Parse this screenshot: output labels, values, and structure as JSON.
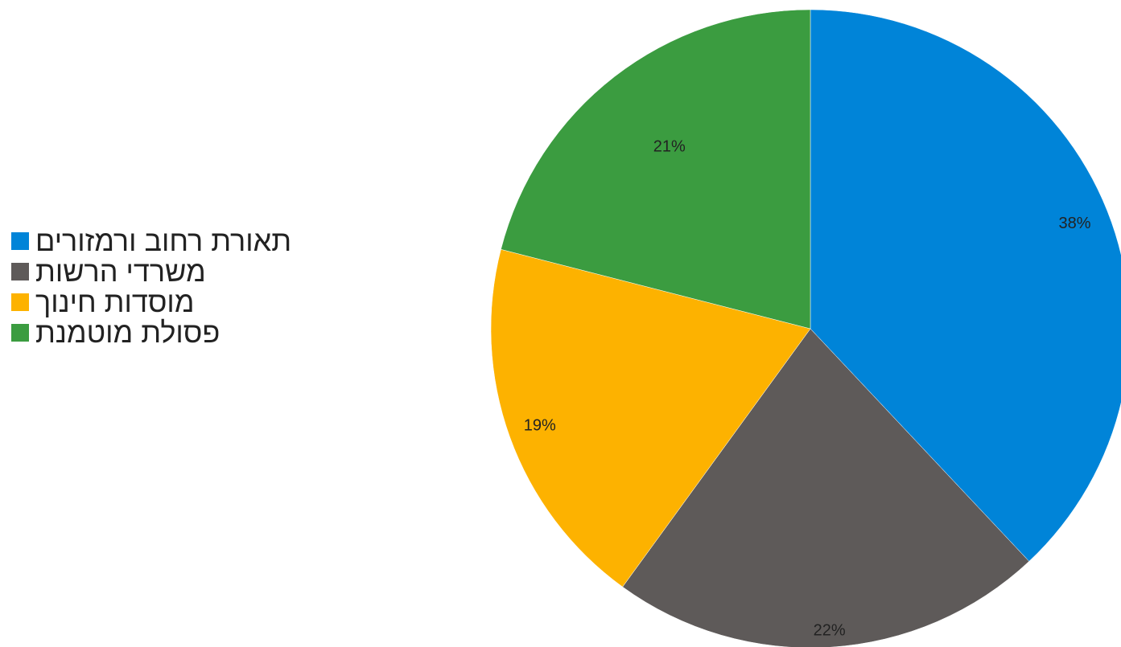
{
  "chart_data": {
    "type": "pie",
    "slices": [
      {
        "label": "תאורת רחוב ורמזורים",
        "value": 38,
        "data_label": "38%",
        "color": "#0084D8"
      },
      {
        "label": "משרדי הרשות",
        "value": 22,
        "data_label": "22%",
        "color": "#5E5A59"
      },
      {
        "label": "מוסדות חינוך",
        "value": 19,
        "data_label": "19%",
        "color": "#FDB200"
      },
      {
        "label": "פסולת מוטמנת",
        "value": 21,
        "data_label": "21%",
        "color": "#3B9C40"
      }
    ],
    "legend_position": "left",
    "start_angle": "top",
    "direction": "clockwise"
  }
}
